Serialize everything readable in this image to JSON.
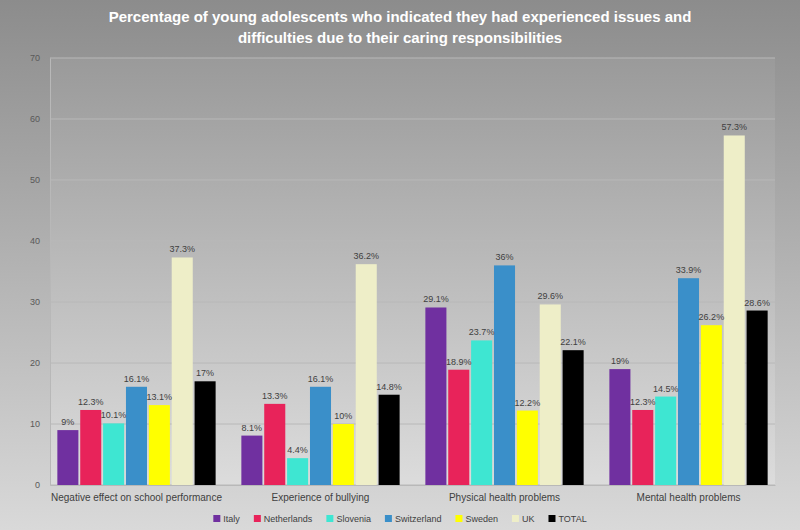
{
  "chart_data": {
    "type": "bar",
    "title": "Percentage of young adolescents who indicated they had experienced issues and difficulties due to their caring responsibilities",
    "categories": [
      "Negative effect on school performance",
      "Experience of bullying",
      "Physical health problems",
      "Mental health problems"
    ],
    "series": [
      {
        "name": "Italy",
        "color": "#7030a0",
        "values": [
          9,
          8.1,
          29.1,
          19
        ],
        "value_labels": [
          "9%",
          "8.1%",
          "29.1%",
          "19%"
        ]
      },
      {
        "name": "Netherlands",
        "color": "#e8235a",
        "values": [
          12.3,
          13.3,
          18.9,
          12.3
        ],
        "value_labels": [
          "12.3%",
          "13.3%",
          "18.9%",
          "12.3%"
        ]
      },
      {
        "name": "Slovenia",
        "color": "#3ee6d2",
        "values": [
          10.1,
          4.4,
          23.7,
          14.5
        ],
        "value_labels": [
          "10.1%",
          "4.4%",
          "23.7%",
          "14.5%"
        ]
      },
      {
        "name": "Switzerland",
        "color": "#3a8fc9",
        "values": [
          16.1,
          16.1,
          36,
          33.9
        ],
        "value_labels": [
          "16.1%",
          "16.1%",
          "36%",
          "33.9%"
        ]
      },
      {
        "name": "Sweden",
        "color": "#ffff00",
        "values": [
          13.1,
          10,
          12.2,
          26.2
        ],
        "value_labels": [
          "13.1%",
          "10%",
          "12.2%",
          "26.2%"
        ]
      },
      {
        "name": "UK",
        "color": "#eeeec8",
        "values": [
          37.3,
          36.2,
          29.6,
          57.3
        ],
        "value_labels": [
          "37.3%",
          "36.2%",
          "29.6%",
          "57.3%"
        ]
      },
      {
        "name": "TOTAL",
        "color": "#000000",
        "values": [
          17,
          14.8,
          22.1,
          28.6
        ],
        "value_labels": [
          "17%",
          "14.8%",
          "22.1%",
          "28.6%"
        ]
      }
    ],
    "ylim": [
      0,
      70
    ],
    "yticks": [
      0,
      10,
      20,
      30,
      40,
      50,
      60,
      70
    ],
    "grid": true,
    "data_labels": true,
    "legend": "bottom"
  }
}
